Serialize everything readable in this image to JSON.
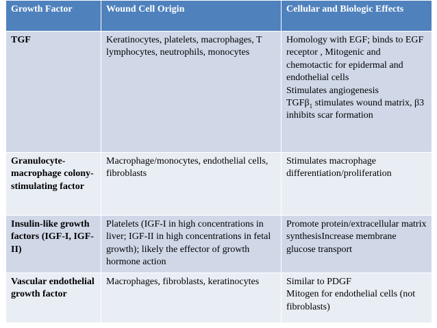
{
  "headers": {
    "col1": "Growth Factor",
    "col2": "Wound Cell Origin",
    "col3": "Cellular and Biologic Effects"
  },
  "rows": [
    {
      "factor": "TGF",
      "origin": "Keratinocytes, platelets, macrophages, T lymphocytes, neutrophils, monocytes",
      "effects": {
        "main": "Homology with EGF; binds to EGF receptor , Mitogenic and chemotactic for epidermal and endothelial cells",
        "angio": "Stimulates angiogenesis",
        "tgf_prefix": "TGFβ",
        "tgf_sub": "1",
        "tgf_rest": " stimulates wound matrix, β3 inhibits scar formation"
      }
    },
    {
      "factor": "Granulocyte-macrophage colony-stimulating factor",
      "origin": "Macrophage/monocytes, endothelial cells, fibroblasts",
      "effects": "Stimulates macrophage differentiation/proliferation"
    },
    {
      "factor": "Insulin-like growth factors (IGF-I, IGF-II)",
      "origin": "Platelets (IGF-I in high concentrations in liver; IGF-II in high concentrations in fetal growth); likely the effector of growth hormone action",
      "effects": "Promote protein/extracellular matrix synthesisIncrease membrane glucose transport"
    },
    {
      "factor": "Vascular endothelial growth factor",
      "origin": "Macrophages, fibroblasts, keratinocytes",
      "effects": {
        "line1": "Similar to PDGF",
        "line2": "Mitogen for endothelial cells (not fibroblasts)"
      }
    }
  ]
}
